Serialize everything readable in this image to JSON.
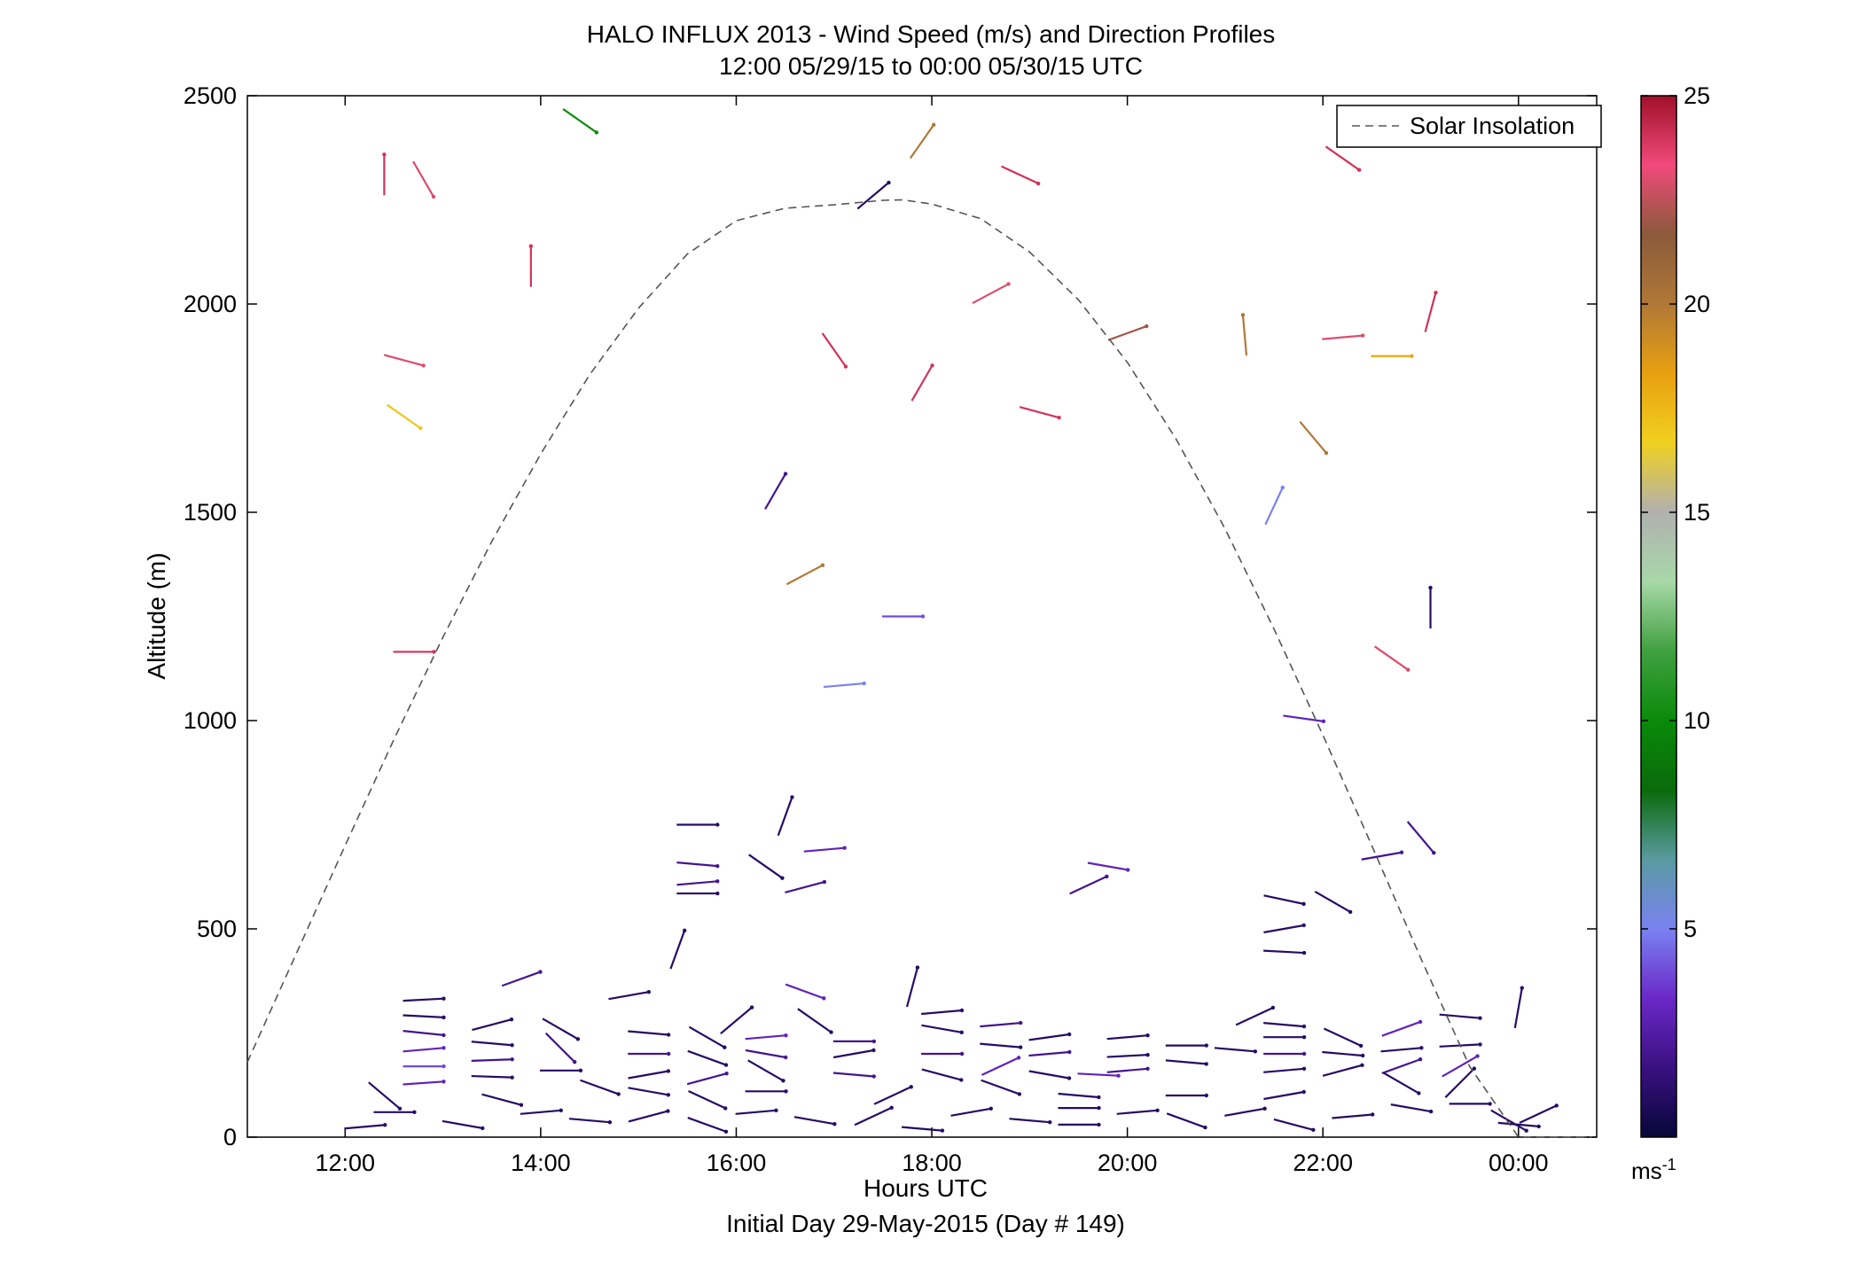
{
  "chart_data": {
    "type": "scatter",
    "subtype": "wind-barb-profile",
    "title": "HALO INFLUX 2013 - Wind Speed (m/s) and Direction Profiles",
    "subtitle": "12:00 05/29/15 to 00:00 05/30/15  UTC",
    "xlabel": "Hours UTC",
    "xlabel2": "Initial Day 29-May-2015 (Day # 149)",
    "ylabel": "Altitude (m)",
    "xlim": [
      11.0,
      24.8
    ],
    "ylim": [
      0,
      2500
    ],
    "xticks": [
      12,
      14,
      16,
      18,
      20,
      22,
      24
    ],
    "xtick_labels": [
      "12:00",
      "14:00",
      "16:00",
      "18:00",
      "20:00",
      "22:00",
      "00:00"
    ],
    "yticks": [
      0,
      500,
      1000,
      1500,
      2000,
      2500
    ],
    "ytick_labels": [
      "0",
      "500",
      "1000",
      "1500",
      "2000",
      "2500"
    ],
    "grid": false,
    "legend": {
      "position": "top-right",
      "entries": [
        {
          "label": "Solar Insolation",
          "style": "dashed",
          "color": "#555555"
        }
      ]
    },
    "colorbar": {
      "min": 0,
      "max": 25,
      "ticks": [
        5,
        10,
        15,
        20,
        25
      ],
      "tick_labels": [
        "5",
        "10",
        "15",
        "20",
        "25"
      ],
      "unit_label": "ms",
      "unit_exponent": "-1",
      "colormap": [
        "#07073a",
        "#3a1080",
        "#6a28c8",
        "#7a82f0",
        "#5a9aa0",
        "#0a6a0a",
        "#0a8a0a",
        "#40a040",
        "#a8d8a8",
        "#b0b0b0",
        "#f0d020",
        "#e8a010",
        "#b07838",
        "#8a5a3a",
        "#f04a7a",
        "#a0102a"
      ]
    },
    "solar_insolation": {
      "x": [
        11.0,
        11.5,
        12.0,
        12.5,
        13.0,
        13.5,
        14.0,
        14.5,
        15.0,
        15.5,
        16.0,
        16.5,
        17.0,
        17.5,
        17.7,
        18.0,
        18.5,
        19.0,
        19.5,
        20.0,
        20.5,
        21.0,
        21.5,
        22.0,
        22.5,
        23.0,
        23.5,
        24.0,
        24.5,
        24.75
      ],
      "y": [
        180,
        440,
        700,
        955,
        1200,
        1430,
        1640,
        1830,
        1990,
        2120,
        2200,
        2230,
        2238,
        2249,
        2250,
        2240,
        2205,
        2125,
        2010,
        1860,
        1675,
        1460,
        1220,
        965,
        700,
        430,
        170,
        0,
        0,
        0
      ]
    },
    "vectors_note": "Each vector: x = hour UTC (hours past 24 = next day), y = altitude (m), s = wind speed (m/s), d = drawn direction in degrees (math convention).",
    "vectors": [
      {
        "x": 12.4,
        "y": 2310,
        "s": 24,
        "d": 90
      },
      {
        "x": 12.8,
        "y": 2300,
        "s": 23,
        "d": -60
      },
      {
        "x": 13.9,
        "y": 2090,
        "s": 24,
        "d": 90
      },
      {
        "x": 14.4,
        "y": 2440,
        "s": 10,
        "d": -35
      },
      {
        "x": 17.4,
        "y": 2260,
        "s": 1,
        "d": 40
      },
      {
        "x": 17.9,
        "y": 2390,
        "s": 20,
        "d": 55
      },
      {
        "x": 18.9,
        "y": 2310,
        "s": 24,
        "d": -25
      },
      {
        "x": 18.6,
        "y": 2025,
        "s": 23,
        "d": 28
      },
      {
        "x": 22.2,
        "y": 2350,
        "s": 24,
        "d": -35
      },
      {
        "x": 21.2,
        "y": 1925,
        "s": 20,
        "d": 95
      },
      {
        "x": 22.2,
        "y": 1920,
        "s": 23,
        "d": 5
      },
      {
        "x": 23.1,
        "y": 1980,
        "s": 24,
        "d": 75
      },
      {
        "x": 22.7,
        "y": 1875,
        "s": 18,
        "d": 0
      },
      {
        "x": 12.6,
        "y": 1865,
        "s": 23,
        "d": -15
      },
      {
        "x": 12.6,
        "y": 1730,
        "s": 17,
        "d": -35
      },
      {
        "x": 17.0,
        "y": 1890,
        "s": 24,
        "d": -55
      },
      {
        "x": 17.9,
        "y": 1810,
        "s": 24,
        "d": 60
      },
      {
        "x": 19.1,
        "y": 1740,
        "s": 24,
        "d": -15
      },
      {
        "x": 20.0,
        "y": 1930,
        "s": 22,
        "d": 20
      },
      {
        "x": 21.9,
        "y": 1680,
        "s": 20,
        "d": -50
      },
      {
        "x": 21.5,
        "y": 1515,
        "s": 5,
        "d": 65
      },
      {
        "x": 16.4,
        "y": 1550,
        "s": 2,
        "d": 60
      },
      {
        "x": 16.7,
        "y": 1350,
        "s": 20,
        "d": 28
      },
      {
        "x": 17.7,
        "y": 1250,
        "s": 4,
        "d": 0
      },
      {
        "x": 17.1,
        "y": 1085,
        "s": 5,
        "d": 5
      },
      {
        "x": 12.7,
        "y": 1165,
        "s": 24,
        "d": 0
      },
      {
        "x": 22.7,
        "y": 1150,
        "s": 23,
        "d": -35
      },
      {
        "x": 23.1,
        "y": 1270,
        "s": 1,
        "d": 90
      },
      {
        "x": 21.8,
        "y": 1005,
        "s": 3,
        "d": -8
      },
      {
        "x": 15.6,
        "y": 750,
        "s": 1,
        "d": 0
      },
      {
        "x": 16.5,
        "y": 770,
        "s": 1,
        "d": 70
      },
      {
        "x": 16.9,
        "y": 690,
        "s": 3,
        "d": 5
      },
      {
        "x": 16.3,
        "y": 650,
        "s": 1,
        "d": -35
      },
      {
        "x": 15.6,
        "y": 655,
        "s": 2,
        "d": -5
      },
      {
        "x": 15.6,
        "y": 610,
        "s": 2,
        "d": 5
      },
      {
        "x": 16.7,
        "y": 600,
        "s": 2,
        "d": 15
      },
      {
        "x": 15.6,
        "y": 585,
        "s": 1,
        "d": 0
      },
      {
        "x": 15.4,
        "y": 450,
        "s": 1,
        "d": 70
      },
      {
        "x": 19.8,
        "y": 650,
        "s": 3,
        "d": -10
      },
      {
        "x": 19.6,
        "y": 605,
        "s": 2,
        "d": 25
      },
      {
        "x": 21.6,
        "y": 570,
        "s": 1,
        "d": -12
      },
      {
        "x": 22.1,
        "y": 565,
        "s": 1,
        "d": -30
      },
      {
        "x": 22.6,
        "y": 675,
        "s": 2,
        "d": 10
      },
      {
        "x": 23.0,
        "y": 720,
        "s": 2,
        "d": -50
      },
      {
        "x": 21.6,
        "y": 500,
        "s": 1,
        "d": 10
      },
      {
        "x": 21.6,
        "y": 445,
        "s": 1,
        "d": -3
      },
      {
        "x": 24.0,
        "y": 310,
        "s": 1,
        "d": 80
      },
      {
        "x": 21.3,
        "y": 290,
        "s": 1,
        "d": 25
      },
      {
        "x": 13.8,
        "y": 380,
        "s": 2,
        "d": 20
      },
      {
        "x": 14.9,
        "y": 340,
        "s": 1,
        "d": 10
      },
      {
        "x": 12.8,
        "y": 330,
        "s": 1,
        "d": 3
      },
      {
        "x": 12.8,
        "y": 290,
        "s": 1,
        "d": -3
      },
      {
        "x": 12.8,
        "y": 250,
        "s": 2,
        "d": -6
      },
      {
        "x": 12.8,
        "y": 210,
        "s": 3,
        "d": 5
      },
      {
        "x": 12.8,
        "y": 170,
        "s": 4,
        "d": 0
      },
      {
        "x": 12.8,
        "y": 130,
        "s": 3,
        "d": 4
      },
      {
        "x": 13.5,
        "y": 270,
        "s": 1,
        "d": 15
      },
      {
        "x": 13.5,
        "y": 225,
        "s": 1,
        "d": -5
      },
      {
        "x": 13.5,
        "y": 185,
        "s": 2,
        "d": 2
      },
      {
        "x": 13.5,
        "y": 145,
        "s": 1,
        "d": -2
      },
      {
        "x": 14.2,
        "y": 260,
        "s": 1,
        "d": -30
      },
      {
        "x": 14.2,
        "y": 215,
        "s": 2,
        "d": -45
      },
      {
        "x": 14.2,
        "y": 160,
        "s": 1,
        "d": 0
      },
      {
        "x": 14.6,
        "y": 120,
        "s": 1,
        "d": -20
      },
      {
        "x": 15.1,
        "y": 250,
        "s": 1,
        "d": -5
      },
      {
        "x": 15.1,
        "y": 200,
        "s": 2,
        "d": 0
      },
      {
        "x": 15.1,
        "y": 150,
        "s": 1,
        "d": 10
      },
      {
        "x": 15.1,
        "y": 110,
        "s": 1,
        "d": -10
      },
      {
        "x": 15.7,
        "y": 240,
        "s": 1,
        "d": -30
      },
      {
        "x": 15.7,
        "y": 190,
        "s": 1,
        "d": -20
      },
      {
        "x": 15.7,
        "y": 140,
        "s": 2,
        "d": 15
      },
      {
        "x": 15.7,
        "y": 90,
        "s": 1,
        "d": -25
      },
      {
        "x": 16.0,
        "y": 280,
        "s": 1,
        "d": 40
      },
      {
        "x": 16.3,
        "y": 240,
        "s": 3,
        "d": 5
      },
      {
        "x": 16.3,
        "y": 200,
        "s": 2,
        "d": -10
      },
      {
        "x": 16.3,
        "y": 160,
        "s": 1,
        "d": -30
      },
      {
        "x": 16.3,
        "y": 110,
        "s": 1,
        "d": 0
      },
      {
        "x": 16.7,
        "y": 350,
        "s": 3,
        "d": -20
      },
      {
        "x": 16.8,
        "y": 280,
        "s": 1,
        "d": -35
      },
      {
        "x": 17.2,
        "y": 230,
        "s": 2,
        "d": 0
      },
      {
        "x": 17.2,
        "y": 200,
        "s": 1,
        "d": 10
      },
      {
        "x": 17.2,
        "y": 150,
        "s": 2,
        "d": -5
      },
      {
        "x": 17.6,
        "y": 100,
        "s": 1,
        "d": 25
      },
      {
        "x": 17.8,
        "y": 360,
        "s": 1,
        "d": 75
      },
      {
        "x": 18.1,
        "y": 300,
        "s": 1,
        "d": 5
      },
      {
        "x": 18.1,
        "y": 260,
        "s": 1,
        "d": -10
      },
      {
        "x": 18.1,
        "y": 200,
        "s": 2,
        "d": 0
      },
      {
        "x": 18.1,
        "y": 150,
        "s": 1,
        "d": -15
      },
      {
        "x": 18.7,
        "y": 270,
        "s": 2,
        "d": 5
      },
      {
        "x": 18.7,
        "y": 220,
        "s": 1,
        "d": -5
      },
      {
        "x": 18.7,
        "y": 170,
        "s": 3,
        "d": 25
      },
      {
        "x": 18.7,
        "y": 120,
        "s": 1,
        "d": -20
      },
      {
        "x": 19.2,
        "y": 240,
        "s": 1,
        "d": 8
      },
      {
        "x": 19.2,
        "y": 200,
        "s": 2,
        "d": 5
      },
      {
        "x": 19.2,
        "y": 150,
        "s": 1,
        "d": -10
      },
      {
        "x": 19.5,
        "y": 100,
        "s": 1,
        "d": -5
      },
      {
        "x": 19.5,
        "y": 70,
        "s": 1,
        "d": 0
      },
      {
        "x": 19.7,
        "y": 150,
        "s": 3,
        "d": -3
      },
      {
        "x": 20.0,
        "y": 240,
        "s": 1,
        "d": 5
      },
      {
        "x": 20.0,
        "y": 195,
        "s": 1,
        "d": 3
      },
      {
        "x": 20.0,
        "y": 160,
        "s": 2,
        "d": 5
      },
      {
        "x": 20.6,
        "y": 220,
        "s": 1,
        "d": 0
      },
      {
        "x": 20.6,
        "y": 180,
        "s": 1,
        "d": -5
      },
      {
        "x": 20.6,
        "y": 100,
        "s": 1,
        "d": 0
      },
      {
        "x": 21.1,
        "y": 210,
        "s": 1,
        "d": -5
      },
      {
        "x": 21.6,
        "y": 270,
        "s": 1,
        "d": -5
      },
      {
        "x": 21.6,
        "y": 240,
        "s": 1,
        "d": 0
      },
      {
        "x": 21.6,
        "y": 200,
        "s": 2,
        "d": 0
      },
      {
        "x": 21.6,
        "y": 160,
        "s": 1,
        "d": 5
      },
      {
        "x": 21.6,
        "y": 100,
        "s": 1,
        "d": 10
      },
      {
        "x": 22.2,
        "y": 240,
        "s": 1,
        "d": -25
      },
      {
        "x": 22.2,
        "y": 200,
        "s": 1,
        "d": -5
      },
      {
        "x": 22.2,
        "y": 160,
        "s": 1,
        "d": 15
      },
      {
        "x": 22.8,
        "y": 260,
        "s": 3,
        "d": 20
      },
      {
        "x": 22.8,
        "y": 210,
        "s": 1,
        "d": 5
      },
      {
        "x": 22.8,
        "y": 170,
        "s": 2,
        "d": 20
      },
      {
        "x": 22.8,
        "y": 130,
        "s": 1,
        "d": -30
      },
      {
        "x": 23.4,
        "y": 290,
        "s": 1,
        "d": -5
      },
      {
        "x": 23.4,
        "y": 220,
        "s": 1,
        "d": 3
      },
      {
        "x": 23.4,
        "y": 170,
        "s": 3,
        "d": 30
      },
      {
        "x": 23.4,
        "y": 130,
        "s": 1,
        "d": 45
      },
      {
        "x": 12.2,
        "y": 25,
        "s": 1,
        "d": 5
      },
      {
        "x": 12.4,
        "y": 100,
        "s": 1,
        "d": -40
      },
      {
        "x": 12.5,
        "y": 60,
        "s": 1,
        "d": 0
      },
      {
        "x": 13.2,
        "y": 30,
        "s": 1,
        "d": -10
      },
      {
        "x": 13.6,
        "y": 90,
        "s": 1,
        "d": -15
      },
      {
        "x": 14.0,
        "y": 60,
        "s": 1,
        "d": 5
      },
      {
        "x": 14.5,
        "y": 40,
        "s": 1,
        "d": -5
      },
      {
        "x": 15.1,
        "y": 50,
        "s": 1,
        "d": 15
      },
      {
        "x": 15.7,
        "y": 30,
        "s": 1,
        "d": -20
      },
      {
        "x": 16.2,
        "y": 60,
        "s": 1,
        "d": 5
      },
      {
        "x": 16.8,
        "y": 40,
        "s": 1,
        "d": -10
      },
      {
        "x": 17.4,
        "y": 50,
        "s": 1,
        "d": 25
      },
      {
        "x": 17.9,
        "y": 20,
        "s": 1,
        "d": -5
      },
      {
        "x": 18.4,
        "y": 60,
        "s": 1,
        "d": 10
      },
      {
        "x": 19.0,
        "y": 40,
        "s": 1,
        "d": -5
      },
      {
        "x": 19.5,
        "y": 30,
        "s": 1,
        "d": 0
      },
      {
        "x": 20.1,
        "y": 60,
        "s": 1,
        "d": 5
      },
      {
        "x": 20.6,
        "y": 40,
        "s": 1,
        "d": -20
      },
      {
        "x": 21.2,
        "y": 60,
        "s": 1,
        "d": 10
      },
      {
        "x": 21.7,
        "y": 30,
        "s": 1,
        "d": -15
      },
      {
        "x": 22.3,
        "y": 50,
        "s": 1,
        "d": 5
      },
      {
        "x": 22.9,
        "y": 70,
        "s": 1,
        "d": -10
      },
      {
        "x": 23.5,
        "y": 80,
        "s": 1,
        "d": 0
      },
      {
        "x": 23.9,
        "y": 40,
        "s": 1,
        "d": -30
      },
      {
        "x": 24.2,
        "y": 55,
        "s": 1,
        "d": 25
      },
      {
        "x": 24.0,
        "y": 30,
        "s": 1,
        "d": -5
      }
    ]
  }
}
